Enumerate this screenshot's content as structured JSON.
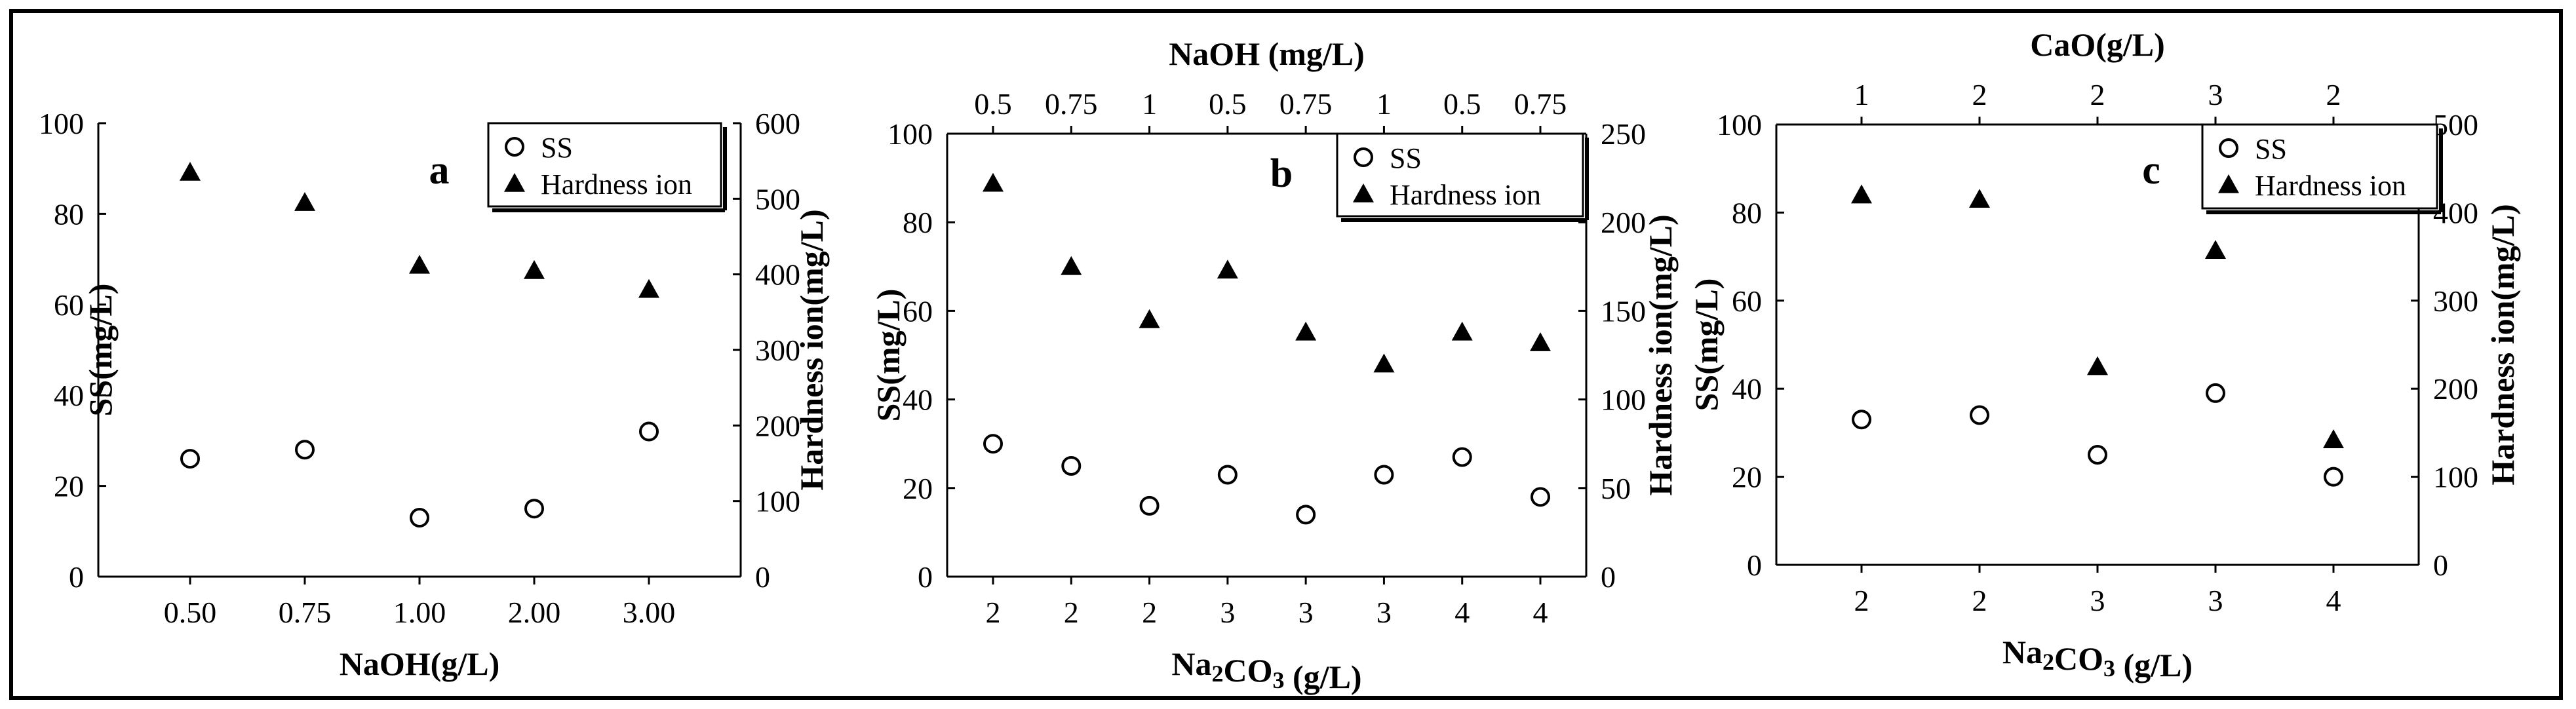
{
  "chart_data": [
    {
      "type": "scatter",
      "panel_label": "a",
      "x_categories": [
        "0.50",
        "0.75",
        "1.00",
        "2.00",
        "3.00"
      ],
      "xlabel": "NaOH(g/L)",
      "ylabel": "SS(mg/L)",
      "ylim": [
        0,
        100
      ],
      "y_ticks": [
        "0",
        "20",
        "40",
        "60",
        "80",
        "100"
      ],
      "y2label": "Hardness ion(mg/L)",
      "y2lim": [
        0,
        600
      ],
      "y2_ticks": [
        "0",
        "100",
        "200",
        "300",
        "400",
        "500",
        "600"
      ],
      "series": [
        {
          "name": "SS",
          "axis": "left",
          "marker": "circle",
          "values": [
            26,
            28,
            13,
            15,
            32
          ]
        },
        {
          "name": "Hardness ion",
          "axis": "right",
          "marker": "triangle",
          "values": [
            535,
            495,
            412,
            405,
            380
          ]
        }
      ],
      "legend": "top-right"
    },
    {
      "type": "scatter",
      "panel_label": "b",
      "x_categories": [
        "2",
        "2",
        "2",
        "3",
        "3",
        "3",
        "4",
        "4"
      ],
      "xlabel": "Na2CO3 (g/L)",
      "top_xlabel": "NaOH (mg/L)",
      "top_x_categories": [
        "0.5",
        "0.75",
        "1",
        "0.5",
        "0.75",
        "1",
        "0.5",
        "0.75"
      ],
      "ylabel": "SS(mg/L)",
      "ylim": [
        0,
        100
      ],
      "y_ticks": [
        "0",
        "20",
        "40",
        "60",
        "80",
        "100"
      ],
      "y2label": "Hardness ion(mg/L)",
      "y2lim": [
        0,
        250
      ],
      "y2_ticks": [
        "0",
        "50",
        "100",
        "150",
        "200",
        "250"
      ],
      "series": [
        {
          "name": "SS",
          "axis": "left",
          "marker": "circle",
          "values": [
            30,
            25,
            16,
            23,
            14,
            23,
            27,
            18
          ]
        },
        {
          "name": "Hardness ion",
          "axis": "right",
          "marker": "triangle",
          "values": [
            222,
            175,
            145,
            173,
            138,
            120,
            138,
            132
          ]
        }
      ],
      "legend": "top-right"
    },
    {
      "type": "scatter",
      "panel_label": "c",
      "x_categories": [
        "2",
        "2",
        "3",
        "3",
        "4"
      ],
      "xlabel": "Na2CO3 (g/L)",
      "top_xlabel": "CaO(g/L)",
      "top_x_categories": [
        "1",
        "2",
        "2",
        "3",
        "2"
      ],
      "ylabel": "SS(mg/L)",
      "ylim": [
        0,
        100
      ],
      "y_ticks": [
        "0",
        "20",
        "40",
        "60",
        "80",
        "100"
      ],
      "y2label": "Hardness ion(mg/L)",
      "y2lim": [
        0,
        500
      ],
      "y2_ticks": [
        "0",
        "100",
        "200",
        "300",
        "400",
        "500"
      ],
      "series": [
        {
          "name": "SS",
          "axis": "left",
          "marker": "circle",
          "values": [
            33,
            34,
            25,
            39,
            20
          ]
        },
        {
          "name": "Hardness ion",
          "axis": "right",
          "marker": "triangle",
          "values": [
            420,
            415,
            225,
            357,
            142
          ]
        }
      ],
      "legend": "top-right"
    }
  ]
}
